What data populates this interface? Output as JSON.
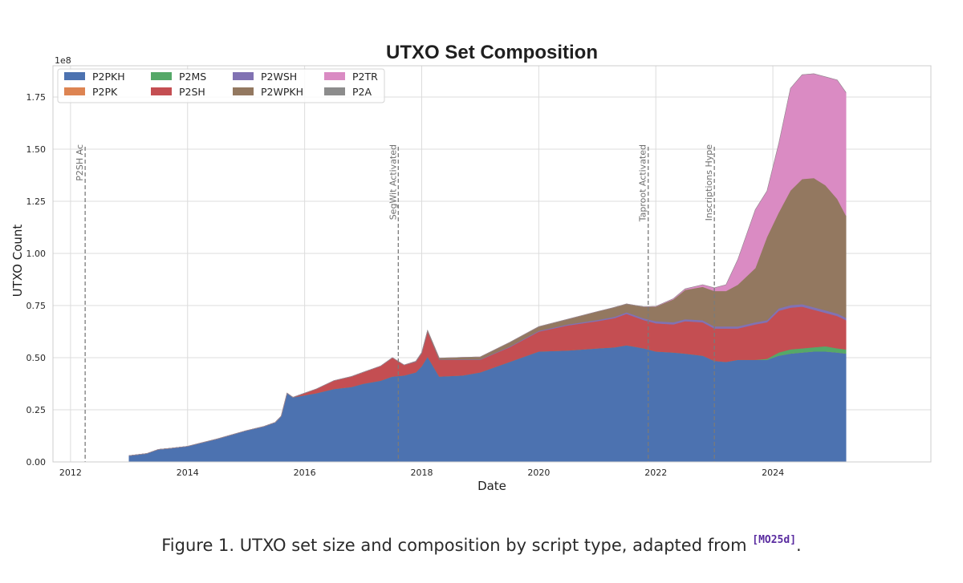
{
  "chart_data": {
    "type": "area",
    "stacked": true,
    "title": "UTXO Set Composition",
    "xlabel": "Date",
    "ylabel": "UTXO Count",
    "y_scale_label": "1e8",
    "xlim": [
      2011.7,
      2026.7
    ],
    "ylim": [
      0,
      1.9
    ],
    "x_ticks": [
      2012,
      2014,
      2016,
      2018,
      2020,
      2022,
      2024
    ],
    "x_tick_labels": [
      "2012",
      "2014",
      "2016",
      "2018",
      "2020",
      "2022",
      "2024"
    ],
    "y_ticks": [
      0,
      0.25,
      0.5,
      0.75,
      1.0,
      1.25,
      1.5,
      1.75
    ],
    "y_tick_labels": [
      "0.00",
      "0.25",
      "0.50",
      "0.75",
      "1.00",
      "1.25",
      "1.50",
      "1.75"
    ],
    "grid": true,
    "legend_placement": "top-left",
    "legend_columns": 4,
    "x": [
      2013.0,
      2013.3,
      2013.5,
      2013.7,
      2014.0,
      2014.5,
      2015.0,
      2015.3,
      2015.5,
      2015.6,
      2015.7,
      2015.8,
      2016.0,
      2016.2,
      2016.5,
      2016.8,
      2017.0,
      2017.3,
      2017.5,
      2017.7,
      2017.9,
      2018.0,
      2018.1,
      2018.3,
      2018.7,
      2019.0,
      2019.5,
      2020.0,
      2020.5,
      2021.0,
      2021.3,
      2021.5,
      2021.8,
      2022.0,
      2022.3,
      2022.5,
      2022.8,
      2023.0,
      2023.2,
      2023.4,
      2023.7,
      2023.9,
      2024.1,
      2024.3,
      2024.5,
      2024.7,
      2024.9,
      2025.1,
      2025.25
    ],
    "series": [
      {
        "name": "P2PKH",
        "color": "#4c72b0",
        "values": [
          0.03,
          0.04,
          0.06,
          0.065,
          0.075,
          0.11,
          0.15,
          0.17,
          0.19,
          0.22,
          0.33,
          0.31,
          0.32,
          0.33,
          0.35,
          0.36,
          0.375,
          0.39,
          0.41,
          0.415,
          0.43,
          0.46,
          0.505,
          0.41,
          0.415,
          0.43,
          0.48,
          0.53,
          0.535,
          0.545,
          0.55,
          0.56,
          0.545,
          0.53,
          0.525,
          0.52,
          0.51,
          0.485,
          0.48,
          0.49,
          0.49,
          0.49,
          0.51,
          0.52,
          0.525,
          0.53,
          0.53,
          0.525,
          0.52
        ]
      },
      {
        "name": "P2PK",
        "color": "#dd8452",
        "values": [
          0,
          0,
          0,
          0,
          0,
          0,
          0,
          0,
          0,
          0,
          0,
          0,
          0,
          0,
          0,
          0,
          0,
          0,
          0,
          0,
          0,
          0,
          0,
          0,
          0,
          0,
          0,
          0,
          0,
          0,
          0,
          0,
          0,
          0,
          0,
          0,
          0,
          0,
          0,
          0,
          0,
          0,
          0,
          0,
          0,
          0,
          0,
          0,
          0
        ]
      },
      {
        "name": "P2MS",
        "color": "#55a868",
        "values": [
          0,
          0,
          0,
          0,
          0,
          0,
          0,
          0,
          0,
          0,
          0,
          0,
          0,
          0,
          0,
          0,
          0,
          0,
          0,
          0,
          0,
          0,
          0,
          0,
          0,
          0,
          0,
          0,
          0,
          0,
          0,
          0,
          0,
          0,
          0,
          0,
          0,
          0,
          0,
          0,
          0,
          0.005,
          0.015,
          0.02,
          0.02,
          0.02,
          0.025,
          0.02,
          0.02
        ]
      },
      {
        "name": "P2SH",
        "color": "#c44e52",
        "values": [
          0,
          0,
          0,
          0,
          0,
          0,
          0,
          0,
          0,
          0,
          0,
          0,
          0.01,
          0.02,
          0.04,
          0.05,
          0.055,
          0.07,
          0.09,
          0.05,
          0.05,
          0.06,
          0.12,
          0.08,
          0.075,
          0.06,
          0.07,
          0.095,
          0.12,
          0.13,
          0.14,
          0.15,
          0.135,
          0.135,
          0.135,
          0.155,
          0.16,
          0.155,
          0.16,
          0.15,
          0.17,
          0.175,
          0.2,
          0.2,
          0.2,
          0.18,
          0.16,
          0.155,
          0.14
        ]
      },
      {
        "name": "P2WSH",
        "color": "#8172b3",
        "values": [
          0,
          0,
          0,
          0,
          0,
          0,
          0,
          0,
          0,
          0,
          0,
          0,
          0,
          0,
          0,
          0,
          0,
          0,
          0,
          0,
          0.001,
          0.001,
          0.001,
          0.001,
          0.002,
          0.002,
          0.003,
          0.004,
          0.005,
          0.006,
          0.007,
          0.008,
          0.009,
          0.01,
          0.01,
          0.01,
          0.01,
          0.01,
          0.01,
          0.01,
          0.01,
          0.01,
          0.012,
          0.012,
          0.012,
          0.012,
          0.012,
          0.012,
          0.012
        ]
      },
      {
        "name": "P2WPKH",
        "color": "#937860",
        "values": [
          0,
          0,
          0,
          0,
          0,
          0,
          0,
          0,
          0,
          0,
          0,
          0,
          0,
          0,
          0,
          0,
          0,
          0,
          0,
          0,
          0.002,
          0.004,
          0.005,
          0.007,
          0.01,
          0.012,
          0.02,
          0.02,
          0.025,
          0.04,
          0.045,
          0.04,
          0.055,
          0.07,
          0.11,
          0.14,
          0.16,
          0.17,
          0.17,
          0.2,
          0.26,
          0.4,
          0.46,
          0.55,
          0.6,
          0.62,
          0.6,
          0.55,
          0.49
        ]
      },
      {
        "name": "P2TR",
        "color": "#da8bc3",
        "values": [
          0,
          0,
          0,
          0,
          0,
          0,
          0,
          0,
          0,
          0,
          0,
          0,
          0,
          0,
          0,
          0,
          0,
          0,
          0,
          0,
          0,
          0,
          0,
          0,
          0,
          0,
          0,
          0,
          0,
          0,
          0,
          0,
          0,
          0.001,
          0.003,
          0.005,
          0.01,
          0.015,
          0.03,
          0.12,
          0.28,
          0.22,
          0.33,
          0.49,
          0.5,
          0.5,
          0.52,
          0.57,
          0.59
        ]
      },
      {
        "name": "P2A",
        "color": "#8c8c8c",
        "values": [
          0,
          0,
          0,
          0,
          0,
          0,
          0,
          0,
          0,
          0,
          0,
          0,
          0,
          0,
          0,
          0,
          0,
          0,
          0,
          0,
          0,
          0,
          0,
          0,
          0,
          0,
          0,
          0,
          0,
          0,
          0,
          0,
          0,
          0,
          0,
          0,
          0,
          0,
          0,
          0,
          0,
          0,
          0,
          0,
          0,
          0,
          0,
          0,
          0
        ]
      }
    ],
    "events": [
      {
        "x": 2012.25,
        "label": "P2SH Ac"
      },
      {
        "x": 2017.6,
        "label": "SegWit Activated"
      },
      {
        "x": 2021.87,
        "label": "Taproot Activated"
      },
      {
        "x": 2023.0,
        "label": "Inscriptions Hype"
      }
    ]
  },
  "caption": {
    "text": "Figure 1. UTXO set size and composition by script type, adapted from ",
    "ref": "[MO25d]",
    "end": "."
  }
}
